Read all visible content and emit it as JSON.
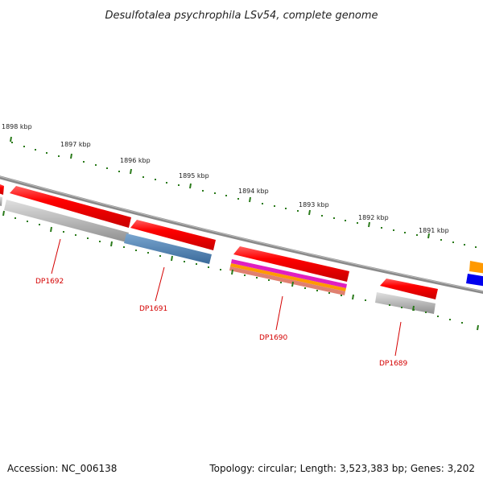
{
  "title": "Desulfotalea psychrophila LSv54, complete genome",
  "footer": {
    "accession": "Accession: NC_006138",
    "summary": "Topology: circular; Length: 3,523,383 bp; Genes: 3,202"
  },
  "scale_labels": [
    "1898 kbp",
    "1897 kbp",
    "1896 kbp",
    "1895 kbp",
    "1894 kbp",
    "1893 kbp",
    "1892 kbp",
    "1891 kbp"
  ],
  "genes": [
    "DP1692",
    "DP1691",
    "DP1690",
    "DP1689"
  ],
  "colors": {
    "gene_red": "#ff0000",
    "label_red": "#d40000",
    "tick_green": "#2a7a1a",
    "backbone_gray": "#777777",
    "cog_gray": "#b8b8b8",
    "cog_blue": "#4a7fb0",
    "cog_magenta": "#e020c0",
    "cog_orange": "#ff9900",
    "cog_salmon": "#e08070",
    "cog_deep_blue": "#0000ee"
  }
}
